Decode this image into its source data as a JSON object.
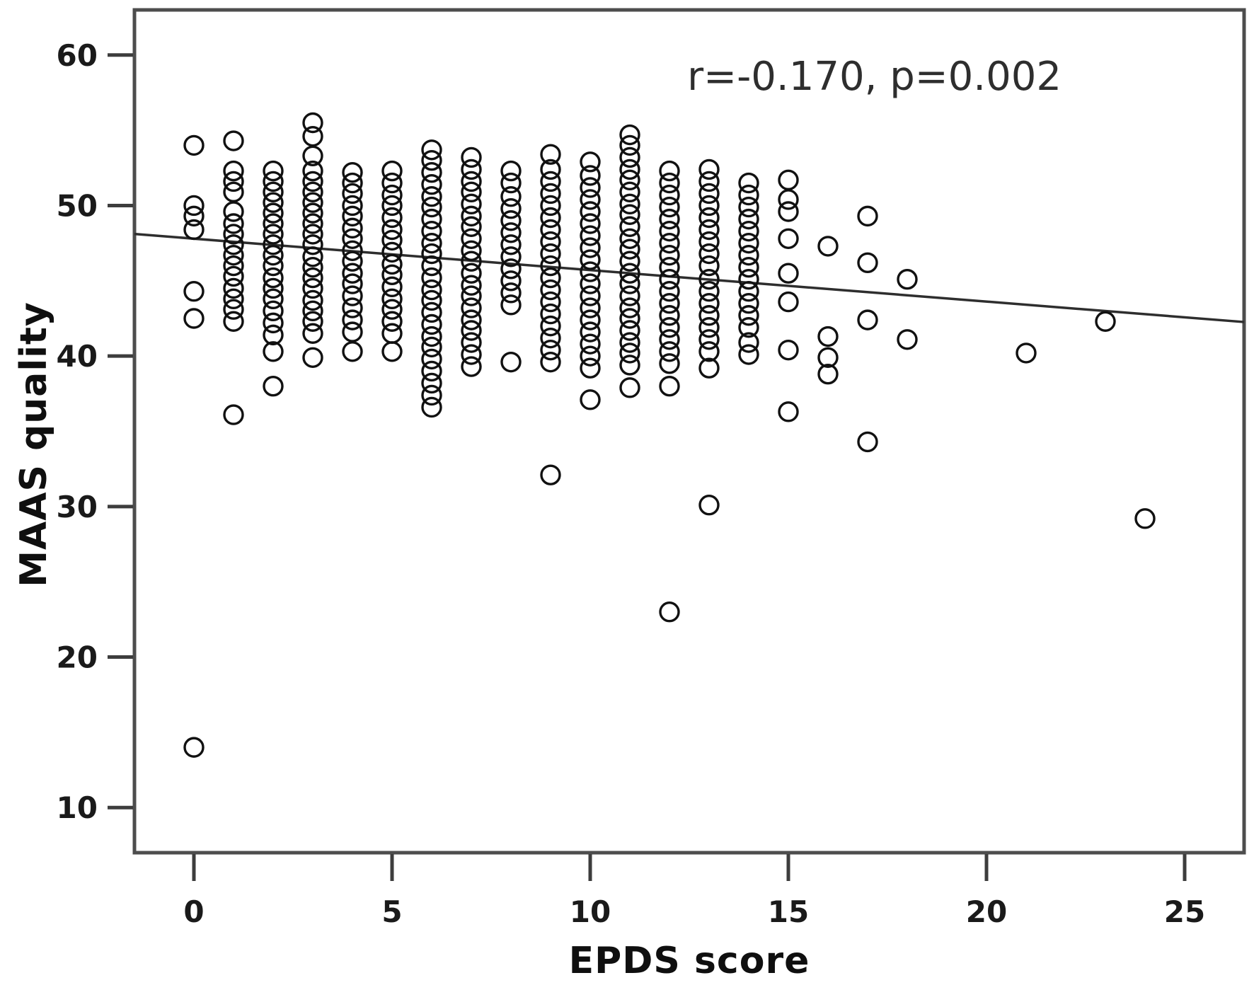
{
  "chart_data": {
    "type": "scatter",
    "title": "",
    "xlabel": "EPDS score",
    "ylabel": "MAAS quality",
    "annotation": "r=-0.170, p=0.002",
    "x_ticks": [
      0,
      5,
      10,
      15,
      20,
      25
    ],
    "y_ticks": [
      10,
      20,
      30,
      40,
      50,
      60
    ],
    "xlim": [
      -1.5,
      26.5
    ],
    "ylim": [
      7,
      63
    ],
    "grid": false,
    "legend": "none",
    "marker": "open-circle",
    "regression": {
      "intercept": 47.8,
      "slope": -0.209,
      "x_start": -1.5,
      "x_end": 26.5
    },
    "points": [
      [
        0,
        54
      ],
      [
        0,
        50
      ],
      [
        0,
        49.3
      ],
      [
        0,
        48.4
      ],
      [
        0,
        44.3
      ],
      [
        0,
        42.5
      ],
      [
        0,
        14
      ],
      [
        1,
        54.3
      ],
      [
        1,
        52.3
      ],
      [
        1,
        51.6
      ],
      [
        1,
        50.9
      ],
      [
        1,
        49.6
      ],
      [
        1,
        48.8
      ],
      [
        1,
        48.1
      ],
      [
        1,
        47.4
      ],
      [
        1,
        46.7
      ],
      [
        1,
        46
      ],
      [
        1,
        45.3
      ],
      [
        1,
        44.5
      ],
      [
        1,
        43.8
      ],
      [
        1,
        43.1
      ],
      [
        1,
        42.3
      ],
      [
        1,
        36.1
      ],
      [
        2,
        52.3
      ],
      [
        2,
        51.6
      ],
      [
        2,
        50.9
      ],
      [
        2,
        50.2
      ],
      [
        2,
        49.5
      ],
      [
        2,
        48.8
      ],
      [
        2,
        48.1
      ],
      [
        2,
        47.4
      ],
      [
        2,
        46.7
      ],
      [
        2,
        46
      ],
      [
        2,
        45.2
      ],
      [
        2,
        44.5
      ],
      [
        2,
        43.8
      ],
      [
        2,
        43
      ],
      [
        2,
        42.2
      ],
      [
        2,
        41.4
      ],
      [
        2,
        40.3
      ],
      [
        2,
        38
      ],
      [
        3,
        55.5
      ],
      [
        3,
        54.6
      ],
      [
        3,
        53.3
      ],
      [
        3,
        52.3
      ],
      [
        3,
        51.6
      ],
      [
        3,
        50.9
      ],
      [
        3,
        50.2
      ],
      [
        3,
        49.5
      ],
      [
        3,
        48.8
      ],
      [
        3,
        48.1
      ],
      [
        3,
        47.4
      ],
      [
        3,
        46.6
      ],
      [
        3,
        45.9
      ],
      [
        3,
        45.2
      ],
      [
        3,
        44.5
      ],
      [
        3,
        43.7
      ],
      [
        3,
        43
      ],
      [
        3,
        42.3
      ],
      [
        3,
        41.5
      ],
      [
        3,
        39.9
      ],
      [
        4,
        52.2
      ],
      [
        4,
        51.5
      ],
      [
        4,
        50.8
      ],
      [
        4,
        50
      ],
      [
        4,
        49.3
      ],
      [
        4,
        48.5
      ],
      [
        4,
        47.8
      ],
      [
        4,
        47
      ],
      [
        4,
        46.3
      ],
      [
        4,
        45.5
      ],
      [
        4,
        44.8
      ],
      [
        4,
        44
      ],
      [
        4,
        43.2
      ],
      [
        4,
        42.4
      ],
      [
        4,
        41.6
      ],
      [
        4,
        40.3
      ],
      [
        5,
        52.3
      ],
      [
        5,
        51.5
      ],
      [
        5,
        50.7
      ],
      [
        5,
        50
      ],
      [
        5,
        49.2
      ],
      [
        5,
        48.4
      ],
      [
        5,
        47.7
      ],
      [
        5,
        46.9
      ],
      [
        5,
        46.1
      ],
      [
        5,
        45.4
      ],
      [
        5,
        44.6
      ],
      [
        5,
        43.8
      ],
      [
        5,
        43.1
      ],
      [
        5,
        42.3
      ],
      [
        5,
        41.5
      ],
      [
        5,
        40.3
      ],
      [
        6,
        53.7
      ],
      [
        6,
        53
      ],
      [
        6,
        52.2
      ],
      [
        6,
        51.4
      ],
      [
        6,
        50.6
      ],
      [
        6,
        49.9
      ],
      [
        6,
        49.1
      ],
      [
        6,
        48.3
      ],
      [
        6,
        47.5
      ],
      [
        6,
        46.8
      ],
      [
        6,
        46
      ],
      [
        6,
        45.2
      ],
      [
        6,
        44.4
      ],
      [
        6,
        43.7
      ],
      [
        6,
        42.9
      ],
      [
        6,
        42.1
      ],
      [
        6,
        41.3
      ],
      [
        6,
        40.6
      ],
      [
        6,
        39.8
      ],
      [
        6,
        39
      ],
      [
        6,
        38.2
      ],
      [
        6,
        37.4
      ],
      [
        6,
        36.6
      ],
      [
        7,
        53.2
      ],
      [
        7,
        52.4
      ],
      [
        7,
        51.6
      ],
      [
        7,
        50.9
      ],
      [
        7,
        50.1
      ],
      [
        7,
        49.3
      ],
      [
        7,
        48.6
      ],
      [
        7,
        47.8
      ],
      [
        7,
        47
      ],
      [
        7,
        46.3
      ],
      [
        7,
        45.5
      ],
      [
        7,
        44.7
      ],
      [
        7,
        44
      ],
      [
        7,
        43.2
      ],
      [
        7,
        42.4
      ],
      [
        7,
        41.7
      ],
      [
        7,
        40.9
      ],
      [
        7,
        40.1
      ],
      [
        7,
        39.3
      ],
      [
        8,
        52.3
      ],
      [
        8,
        51.5
      ],
      [
        8,
        50.6
      ],
      [
        8,
        49.8
      ],
      [
        8,
        49
      ],
      [
        8,
        48.2
      ],
      [
        8,
        47.4
      ],
      [
        8,
        46.6
      ],
      [
        8,
        45.8
      ],
      [
        8,
        45
      ],
      [
        8,
        44.2
      ],
      [
        8,
        43.4
      ],
      [
        8,
        39.6
      ],
      [
        9,
        53.4
      ],
      [
        9,
        52.4
      ],
      [
        9,
        51.6
      ],
      [
        9,
        50.8
      ],
      [
        9,
        50
      ],
      [
        9,
        49.2
      ],
      [
        9,
        48.4
      ],
      [
        9,
        47.6
      ],
      [
        9,
        46.8
      ],
      [
        9,
        46
      ],
      [
        9,
        45.2
      ],
      [
        9,
        44.4
      ],
      [
        9,
        43.6
      ],
      [
        9,
        42.8
      ],
      [
        9,
        42
      ],
      [
        9,
        41.2
      ],
      [
        9,
        40.4
      ],
      [
        9,
        39.6
      ],
      [
        9,
        32.1
      ],
      [
        10,
        52.9
      ],
      [
        10,
        52
      ],
      [
        10,
        51.2
      ],
      [
        10,
        50.4
      ],
      [
        10,
        49.6
      ],
      [
        10,
        48.8
      ],
      [
        10,
        48
      ],
      [
        10,
        47.2
      ],
      [
        10,
        46.4
      ],
      [
        10,
        45.6
      ],
      [
        10,
        44.8
      ],
      [
        10,
        44
      ],
      [
        10,
        43.2
      ],
      [
        10,
        42.4
      ],
      [
        10,
        41.6
      ],
      [
        10,
        40.8
      ],
      [
        10,
        40
      ],
      [
        10,
        39.2
      ],
      [
        10,
        37.1
      ],
      [
        11,
        54.7
      ],
      [
        11,
        54
      ],
      [
        11,
        53.2
      ],
      [
        11,
        52.4
      ],
      [
        11,
        51.7
      ],
      [
        11,
        50.9
      ],
      [
        11,
        50.1
      ],
      [
        11,
        49.4
      ],
      [
        11,
        48.6
      ],
      [
        11,
        47.8
      ],
      [
        11,
        47.1
      ],
      [
        11,
        46.3
      ],
      [
        11,
        45.5
      ],
      [
        11,
        44.8
      ],
      [
        11,
        44
      ],
      [
        11,
        43.2
      ],
      [
        11,
        42.5
      ],
      [
        11,
        41.7
      ],
      [
        11,
        40.9
      ],
      [
        11,
        40.2
      ],
      [
        11,
        39.4
      ],
      [
        11,
        37.9
      ],
      [
        12,
        52.3
      ],
      [
        12,
        51.5
      ],
      [
        12,
        50.7
      ],
      [
        12,
        49.9
      ],
      [
        12,
        49.1
      ],
      [
        12,
        48.3
      ],
      [
        12,
        47.5
      ],
      [
        12,
        46.7
      ],
      [
        12,
        45.9
      ],
      [
        12,
        45.1
      ],
      [
        12,
        44.3
      ],
      [
        12,
        43.5
      ],
      [
        12,
        42.7
      ],
      [
        12,
        41.9
      ],
      [
        12,
        41.1
      ],
      [
        12,
        40.3
      ],
      [
        12,
        39.5
      ],
      [
        12,
        38
      ],
      [
        12,
        23
      ],
      [
        13,
        52.4
      ],
      [
        13,
        51.6
      ],
      [
        13,
        50.8
      ],
      [
        13,
        50
      ],
      [
        13,
        49.2
      ],
      [
        13,
        48.4
      ],
      [
        13,
        47.6
      ],
      [
        13,
        46.8
      ],
      [
        13,
        46
      ],
      [
        13,
        45.1
      ],
      [
        13,
        44.3
      ],
      [
        13,
        43.5
      ],
      [
        13,
        42.7
      ],
      [
        13,
        41.9
      ],
      [
        13,
        41.1
      ],
      [
        13,
        40.3
      ],
      [
        13,
        39.2
      ],
      [
        13,
        30.1
      ],
      [
        14,
        51.5
      ],
      [
        14,
        50.7
      ],
      [
        14,
        49.9
      ],
      [
        14,
        49.1
      ],
      [
        14,
        48.3
      ],
      [
        14,
        47.5
      ],
      [
        14,
        46.7
      ],
      [
        14,
        45.9
      ],
      [
        14,
        45.1
      ],
      [
        14,
        44.3
      ],
      [
        14,
        43.5
      ],
      [
        14,
        42.7
      ],
      [
        14,
        41.9
      ],
      [
        14,
        40.9
      ],
      [
        14,
        40.1
      ],
      [
        15,
        51.7
      ],
      [
        15,
        50.4
      ],
      [
        15,
        49.6
      ],
      [
        15,
        47.8
      ],
      [
        15,
        45.5
      ],
      [
        15,
        43.6
      ],
      [
        15,
        40.4
      ],
      [
        15,
        36.3
      ],
      [
        16,
        47.3
      ],
      [
        16,
        41.3
      ],
      [
        16,
        39.9
      ],
      [
        16,
        38.8
      ],
      [
        17,
        49.3
      ],
      [
        17,
        46.2
      ],
      [
        17,
        42.4
      ],
      [
        17,
        34.3
      ],
      [
        18,
        45.1
      ],
      [
        18,
        41.1
      ],
      [
        21,
        40.2
      ],
      [
        23,
        42.3
      ],
      [
        24,
        29.2
      ]
    ]
  },
  "style": {
    "marker_stroke": "#111111",
    "regression_color": "#2e2e2e",
    "frame_color": "#4d4d4d",
    "tick_color": "#3d3d3d",
    "text_color": "#1a1a1a",
    "background": "#ffffff"
  }
}
